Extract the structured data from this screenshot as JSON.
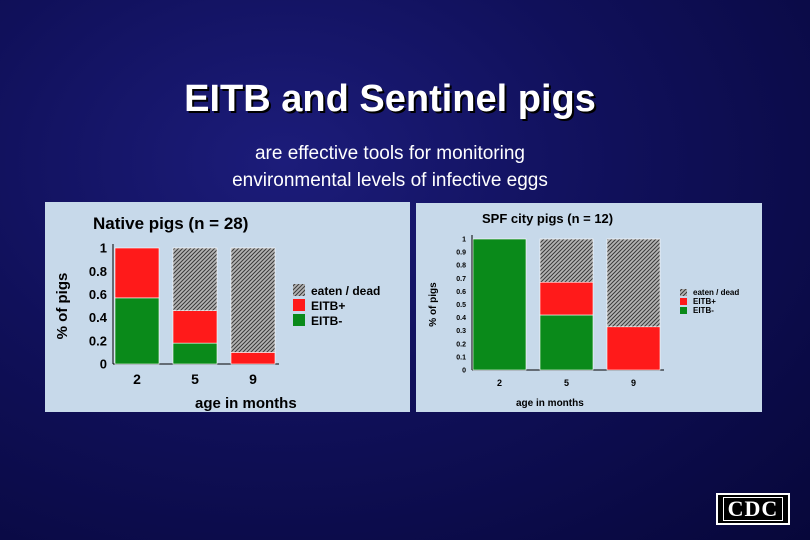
{
  "slide": {
    "title": "EITB and Sentinel pigs",
    "subtitle_line1": "are effective tools for monitoring",
    "subtitle_line2": "environmental levels of infective eggs",
    "logo_text": "CDC"
  },
  "colors": {
    "eaten_dead": "#7a7a7a",
    "eitb_pos": "#ff1a1a",
    "eitb_neg": "#0a8a1a",
    "panel_bg": "#c7d9ea"
  },
  "chart_data": [
    {
      "type": "bar",
      "stacked": true,
      "title": "Native pigs (n = 28)",
      "xlabel": "age in months",
      "ylabel": "% of pigs",
      "categories": [
        "2",
        "5",
        "9"
      ],
      "yticks": [
        "0",
        "0.2",
        "0.4",
        "0.6",
        "0.8",
        "1"
      ],
      "ylim": [
        0,
        1
      ],
      "legend_position": "right",
      "series": [
        {
          "name": "EITB-",
          "values": [
            0.57,
            0.18,
            0
          ]
        },
        {
          "name": "EITB+",
          "values": [
            0.43,
            0.28,
            0.1
          ]
        },
        {
          "name": "eaten / dead",
          "values": [
            0,
            0.54,
            0.9
          ]
        }
      ]
    },
    {
      "type": "bar",
      "stacked": true,
      "title": "SPF city pigs (n = 12)",
      "xlabel": "age in months",
      "ylabel": "% of pigs",
      "categories": [
        "2",
        "5",
        "9"
      ],
      "yticks": [
        "0",
        "0.1",
        "0.2",
        "0.3",
        "0.4",
        "0.5",
        "0.6",
        "0.7",
        "0.8",
        "0.9",
        "1"
      ],
      "ylim": [
        0,
        1
      ],
      "legend_position": "right",
      "series": [
        {
          "name": "EITB-",
          "values": [
            1.0,
            0.42,
            0
          ]
        },
        {
          "name": "EITB+",
          "values": [
            0,
            0.25,
            0.33
          ]
        },
        {
          "name": "eaten / dead",
          "values": [
            0,
            0.33,
            0.67
          ]
        }
      ]
    }
  ]
}
